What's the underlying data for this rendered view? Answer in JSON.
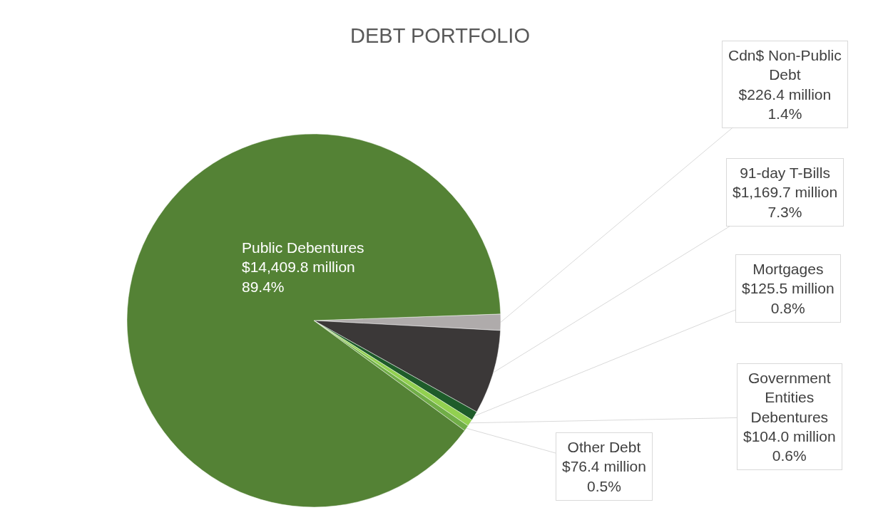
{
  "chart_data": {
    "type": "pie",
    "title": "DEBT PORTFOLIO",
    "categories": [
      "Cdn$ Non-Public Debt",
      "91-day T-Bills",
      "Mortgages",
      "Government Entities Debentures",
      "Other Debt",
      "Public Debentures"
    ],
    "values": [
      1.4,
      7.3,
      0.8,
      0.6,
      0.5,
      89.4
    ],
    "value_labels": [
      "$226.4 million\n1.4%",
      "$1,169.7 million\n7.3%",
      "$125.5 million\n0.8%",
      "$104.0 million\n0.6%",
      "$76.4 million\n0.5%",
      "$14,409.8 million\n89.4%"
    ],
    "colors": [
      "#afabab",
      "#3b3838",
      "#1e5c2a",
      "#92d050",
      "#70ad47",
      "#548235"
    ],
    "legend": false
  }
}
